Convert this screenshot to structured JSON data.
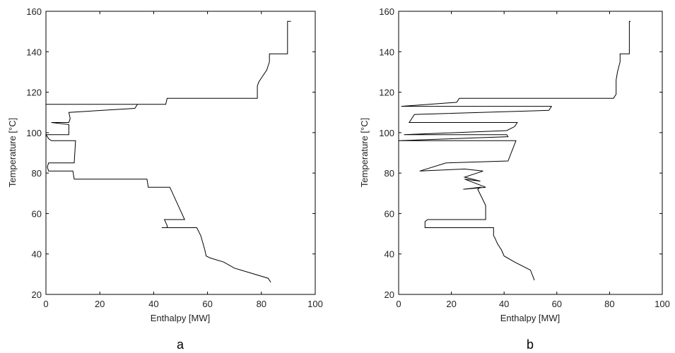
{
  "chart_data": [
    {
      "type": "line",
      "panel_label": "a",
      "xlabel": "Enthalpy [MW]",
      "ylabel": "Temperature [°C]",
      "xlim": [
        0,
        100
      ],
      "ylim": [
        20,
        160
      ],
      "xticks": [
        0,
        20,
        40,
        60,
        80,
        100
      ],
      "yticks": [
        20,
        40,
        60,
        80,
        100,
        120,
        140,
        160
      ],
      "grid": false,
      "series": [
        {
          "color": "#000000",
          "x": [
            91,
            89.7,
            89.7,
            83,
            83,
            82,
            80,
            79,
            78.5,
            78.5,
            78,
            45,
            44.5,
            0,
            34,
            33,
            8.5,
            9,
            8.5,
            2,
            8.5,
            8.5,
            0,
            1,
            2,
            11,
            10.5,
            1,
            0.5,
            1,
            10,
            10.5,
            37.5,
            38,
            46,
            51.5,
            44,
            45,
            45,
            43,
            56,
            57.5,
            59,
            59.5,
            61,
            66,
            70,
            82.5,
            83.5
          ],
          "y": [
            155,
            155,
            139,
            139,
            135,
            131,
            127,
            125,
            123,
            117,
            117,
            117,
            114,
            114,
            114,
            112,
            110,
            107,
            105,
            105,
            104,
            99,
            99,
            97,
            96,
            96,
            85,
            85,
            83,
            81,
            81,
            77,
            77,
            73,
            73,
            57,
            57,
            54,
            53,
            53,
            53,
            49,
            42,
            39,
            38,
            36,
            33,
            28,
            26
          ]
        }
      ]
    },
    {
      "type": "line",
      "panel_label": "b",
      "xlabel": "Enthalpy [MW]",
      "ylabel": "Temperature [°C]",
      "xlim": [
        0,
        100
      ],
      "ylim": [
        20,
        160
      ],
      "xticks": [
        0,
        20,
        40,
        60,
        80,
        100
      ],
      "yticks": [
        20,
        40,
        60,
        80,
        100,
        120,
        140,
        160
      ],
      "grid": false,
      "series": [
        {
          "color": "#000000",
          "x": [
            88,
            87.5,
            87.5,
            84,
            84,
            83,
            82.5,
            82.5,
            81.5,
            23,
            22,
            1,
            58,
            57,
            6,
            4,
            45,
            44,
            41,
            2,
            41,
            41.5,
            0,
            44.5,
            43,
            41.5,
            18,
            8,
            25,
            32,
            25,
            31,
            25,
            33,
            24.5,
            31,
            30,
            31.5,
            33,
            33,
            11,
            10,
            10,
            36,
            36,
            36.5,
            37.5,
            39,
            40,
            44,
            50,
            51.5
          ],
          "y": [
            155,
            155,
            139,
            139,
            135,
            130,
            126,
            119,
            117,
            117,
            115,
            113,
            113,
            111,
            109,
            105,
            105,
            103,
            101,
            99,
            99,
            98,
            96,
            96,
            91,
            86,
            85,
            81,
            82,
            81,
            78,
            76,
            77,
            73,
            72,
            73,
            72,
            68,
            64,
            57,
            57,
            56,
            53,
            53,
            49,
            48,
            45,
            42,
            39,
            36,
            32,
            27
          ]
        }
      ]
    }
  ]
}
